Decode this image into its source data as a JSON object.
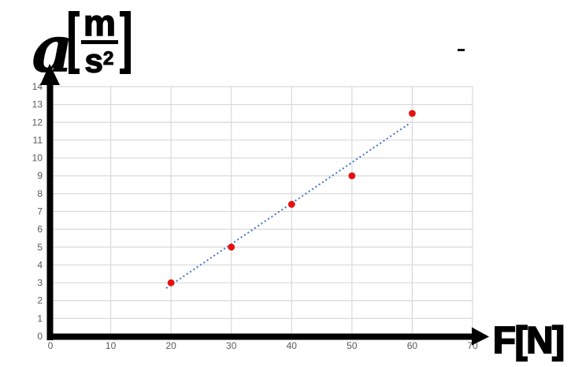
{
  "chart_data": {
    "type": "scatter",
    "title": "",
    "xlabel": "F[N]",
    "ylabel": "a[m/s²]",
    "ylabel_parts": {
      "variable": "a",
      "bracket_open": "[",
      "numerator": "m",
      "denominator_base": "s",
      "denominator_exponent": "2",
      "bracket_close": "]"
    },
    "xlim": [
      0,
      70
    ],
    "ylim": [
      0,
      14
    ],
    "x_ticks": [
      0,
      10,
      20,
      30,
      40,
      50,
      60,
      70
    ],
    "y_ticks": [
      0,
      1,
      2,
      3,
      4,
      5,
      6,
      7,
      8,
      9,
      10,
      11,
      12,
      13,
      14
    ],
    "grid": true,
    "legend": false,
    "points": [
      {
        "x": 20,
        "y": 3
      },
      {
        "x": 30,
        "y": 5
      },
      {
        "x": 40,
        "y": 7.4
      },
      {
        "x": 50,
        "y": 9
      },
      {
        "x": 60,
        "y": 12.5
      }
    ],
    "trendline": {
      "style": "dotted",
      "x1": 19.2,
      "y1": 2.7,
      "x2": 59.4,
      "y2": 11.9
    },
    "colors": {
      "point": "#e61212",
      "trendline": "#4472c4",
      "gridline": "#d9d9d9",
      "tick_label": "#595959",
      "axis": "#000000"
    },
    "marks": {
      "top_right_dash": "-"
    }
  }
}
